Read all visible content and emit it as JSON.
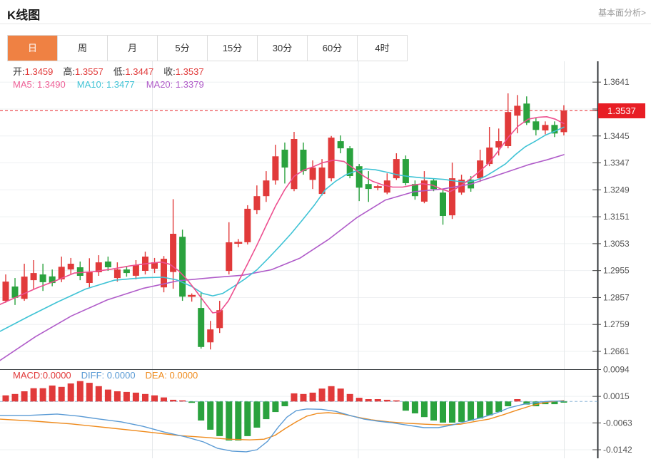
{
  "header": {
    "title": "K线图",
    "link": "基本面分析>"
  },
  "tabs": {
    "items": [
      "日",
      "周",
      "月",
      "5分",
      "15分",
      "30分",
      "60分",
      "4时"
    ],
    "active_index": 0
  },
  "readout": {
    "open_label": "开:",
    "open": "1.3459",
    "high_label": "高:",
    "high": "1.3557",
    "low_label": "低:",
    "low": "1.3447",
    "close_label": "收:",
    "close": "1.3537"
  },
  "ma_readout": {
    "ma5_label": "MA5:",
    "ma5": "1.3490",
    "ma10_label": "MA10:",
    "ma10": "1.3477",
    "ma20_label": "MA20:",
    "ma20": "1.3379"
  },
  "macd_readout": {
    "macd_label": "MACD:",
    "macd": "0.0000",
    "diff_label": "DIFF:",
    "diff": "0.0000",
    "dea_label": "DEA:",
    "dea": "0.0000"
  },
  "price_axis": {
    "ticks": [
      "1.3641",
      "1.3445",
      "1.3347",
      "1.3249",
      "1.3151",
      "1.3053",
      "1.2955",
      "1.2857",
      "1.2759",
      "1.2661"
    ],
    "gridlines": [
      1.3641,
      1.3543,
      1.3445,
      1.3347,
      1.3249,
      1.3151,
      1.3053,
      1.2955,
      1.2857,
      1.2759,
      1.2661
    ],
    "current": "1.3537",
    "current_value": 1.3537
  },
  "macd_axis": {
    "ticks": [
      "0.0094",
      "0.0015",
      "-0.0063",
      "-0.0142"
    ],
    "gridlines": [
      0.0015,
      -0.0063,
      -0.0142
    ]
  },
  "colors": {
    "up": "#e13a3a",
    "down": "#2aa23e",
    "ma5": "#ed4f8f",
    "ma10": "#3fc3d5",
    "ma20": "#b05cc9",
    "diff": "#5b9bd5",
    "dea": "#ef8b1d",
    "badge": "#e81e25",
    "dashed_price": "#e8262a",
    "dashed_zero": "#8fb8da",
    "tab_active": "#ef8143"
  },
  "chart_data": {
    "type": "candlestick",
    "title": "K线图",
    "legend": [
      "MA5",
      "MA10",
      "MA20",
      "MACD",
      "DIFF",
      "DEA"
    ],
    "price_range": [
      1.2661,
      1.3641
    ],
    "macd_range": [
      -0.0142,
      0.0094
    ],
    "grid": true,
    "current_price": 1.3537,
    "candles_ohlc": [
      [
        1.2845,
        1.2941,
        1.2838,
        1.2915
      ],
      [
        1.2897,
        1.2928,
        1.283,
        1.2856
      ],
      [
        1.2852,
        1.298,
        1.2845,
        1.2933
      ],
      [
        1.292,
        1.2993,
        1.2889,
        1.2946
      ],
      [
        1.2941,
        1.298,
        1.2881,
        1.2913
      ],
      [
        1.2934,
        1.2959,
        1.2898,
        1.291
      ],
      [
        1.2923,
        1.3006,
        1.2913,
        1.2969
      ],
      [
        1.2959,
        1.3001,
        1.2941,
        1.298
      ],
      [
        1.2967,
        1.2988,
        1.292,
        1.2936
      ],
      [
        1.291,
        1.3,
        1.2894,
        1.2949
      ],
      [
        1.2949,
        1.3011,
        1.2936,
        1.2985
      ],
      [
        1.2988,
        1.3006,
        1.2954,
        1.2967
      ],
      [
        1.2928,
        1.2985,
        1.2915,
        1.2959
      ],
      [
        1.2959,
        1.2972,
        1.2933,
        1.2946
      ],
      [
        1.2936,
        1.2993,
        1.2923,
        1.2975
      ],
      [
        1.2954,
        1.3024,
        1.2941,
        1.3006
      ],
      [
        1.2962,
        1.3001,
        1.2946,
        1.2985
      ],
      [
        1.2894,
        1.3008,
        1.2876,
        1.2998
      ],
      [
        1.295,
        1.3215,
        1.2889,
        1.3089
      ],
      [
        1.3078,
        1.3104,
        1.2845,
        1.286
      ],
      [
        1.2859,
        1.2872,
        1.2842,
        1.2863
      ],
      [
        1.2819,
        1.2876,
        1.2671,
        1.2677
      ],
      [
        1.2694,
        1.2772,
        1.2668,
        1.2741
      ],
      [
        1.2746,
        1.2845,
        1.2728,
        1.2811
      ],
      [
        1.2954,
        1.3131,
        1.2941,
        1.3058
      ],
      [
        1.3052,
        1.307,
        1.304,
        1.3056
      ],
      [
        1.3058,
        1.3193,
        1.305,
        1.318
      ],
      [
        1.3175,
        1.3265,
        1.3161,
        1.3226
      ],
      [
        1.3226,
        1.3317,
        1.3205,
        1.3283
      ],
      [
        1.3283,
        1.3413,
        1.3268,
        1.3371
      ],
      [
        1.3395,
        1.3421,
        1.3272,
        1.333
      ],
      [
        1.3252,
        1.346,
        1.3244,
        1.3434
      ],
      [
        1.3395,
        1.3421,
        1.3304,
        1.3317
      ],
      [
        1.3285,
        1.3356,
        1.3252,
        1.333
      ],
      [
        1.3234,
        1.3361,
        1.3228,
        1.333
      ],
      [
        1.3291,
        1.3445,
        1.328,
        1.3439
      ],
      [
        1.3426,
        1.3447,
        1.3382,
        1.34
      ],
      [
        1.34,
        1.3408,
        1.3291,
        1.3299
      ],
      [
        1.3335,
        1.3343,
        1.3208,
        1.3257
      ],
      [
        1.327,
        1.3317,
        1.3205,
        1.3252
      ],
      [
        1.3255,
        1.3268,
        1.3247,
        1.3259
      ],
      [
        1.3239,
        1.3309,
        1.3233,
        1.3283
      ],
      [
        1.3291,
        1.3382,
        1.3285,
        1.3361
      ],
      [
        1.3361,
        1.3374,
        1.3265,
        1.3273
      ],
      [
        1.327,
        1.3283,
        1.3213,
        1.3226
      ],
      [
        1.3206,
        1.3317,
        1.32,
        1.3283
      ],
      [
        1.3283,
        1.3291,
        1.3244,
        1.3252
      ],
      [
        1.3239,
        1.325,
        1.3122,
        1.3154
      ],
      [
        1.3156,
        1.3348,
        1.3143,
        1.3291
      ],
      [
        1.3239,
        1.3304,
        1.3231,
        1.3286
      ],
      [
        1.3286,
        1.3299,
        1.3242,
        1.3254
      ],
      [
        1.3291,
        1.3395,
        1.3278,
        1.3356
      ],
      [
        1.3343,
        1.3478,
        1.3335,
        1.3403
      ],
      [
        1.3403,
        1.3472,
        1.3374,
        1.3426
      ],
      [
        1.3408,
        1.36,
        1.34,
        1.3532
      ],
      [
        1.3519,
        1.3594,
        1.3455,
        1.3555
      ],
      [
        1.3563,
        1.3589,
        1.3485,
        1.3493
      ],
      [
        1.3498,
        1.3511,
        1.3447,
        1.3467
      ],
      [
        1.3465,
        1.3498,
        1.3451,
        1.3485
      ],
      [
        1.3485,
        1.3498,
        1.3441,
        1.3454
      ],
      [
        1.3459,
        1.3557,
        1.3447,
        1.3537
      ]
    ],
    "ma5": [
      [
        0,
        1.2832
      ],
      [
        26,
        1.2862
      ],
      [
        52,
        1.2892
      ],
      [
        78,
        1.2918
      ],
      [
        104,
        1.2946
      ],
      [
        130,
        1.2951
      ],
      [
        156,
        1.296
      ],
      [
        182,
        1.2972
      ],
      [
        208,
        1.2981
      ],
      [
        226,
        1.2986
      ],
      [
        238,
        1.2978
      ],
      [
        250,
        1.2955
      ],
      [
        262,
        1.2923
      ],
      [
        274,
        1.2883
      ],
      [
        287,
        1.2838
      ],
      [
        298,
        1.2801
      ],
      [
        308,
        1.2805
      ],
      [
        320,
        1.2845
      ],
      [
        333,
        1.291
      ],
      [
        346,
        1.2975
      ],
      [
        360,
        1.3048
      ],
      [
        373,
        1.312
      ],
      [
        386,
        1.319
      ],
      [
        399,
        1.325
      ],
      [
        412,
        1.3298
      ],
      [
        425,
        1.332
      ],
      [
        438,
        1.3332
      ],
      [
        452,
        1.3348
      ],
      [
        468,
        1.3357
      ],
      [
        482,
        1.3352
      ],
      [
        496,
        1.3326
      ],
      [
        510,
        1.3298
      ],
      [
        522,
        1.328
      ],
      [
        536,
        1.3267
      ],
      [
        550,
        1.3259
      ],
      [
        564,
        1.3259
      ],
      [
        578,
        1.3266
      ],
      [
        592,
        1.3271
      ],
      [
        606,
        1.3266
      ],
      [
        618,
        1.3252
      ],
      [
        630,
        1.3242
      ],
      [
        642,
        1.3258
      ],
      [
        656,
        1.3283
      ],
      [
        670,
        1.3312
      ],
      [
        684,
        1.3344
      ],
      [
        698,
        1.339
      ],
      [
        712,
        1.344
      ],
      [
        726,
        1.3481
      ],
      [
        740,
        1.3506
      ],
      [
        754,
        1.3513
      ],
      [
        766,
        1.3515
      ],
      [
        778,
        1.3506
      ],
      [
        790,
        1.349
      ]
    ],
    "ma10": [
      [
        0,
        1.2734
      ],
      [
        40,
        1.2788
      ],
      [
        80,
        1.284
      ],
      [
        120,
        1.2888
      ],
      [
        160,
        1.292
      ],
      [
        200,
        1.2929
      ],
      [
        228,
        1.2931
      ],
      [
        248,
        1.2921
      ],
      [
        268,
        1.2898
      ],
      [
        284,
        1.2872
      ],
      [
        298,
        1.2863
      ],
      [
        312,
        1.2872
      ],
      [
        328,
        1.2898
      ],
      [
        344,
        1.2926
      ],
      [
        360,
        1.2958
      ],
      [
        376,
        1.3
      ],
      [
        392,
        1.3044
      ],
      [
        408,
        1.309
      ],
      [
        424,
        1.314
      ],
      [
        440,
        1.3192
      ],
      [
        456,
        1.325
      ],
      [
        470,
        1.328
      ],
      [
        484,
        1.3303
      ],
      [
        498,
        1.3317
      ],
      [
        512,
        1.3325
      ],
      [
        526,
        1.3322
      ],
      [
        542,
        1.3313
      ],
      [
        558,
        1.3303
      ],
      [
        574,
        1.3297
      ],
      [
        590,
        1.3293
      ],
      [
        606,
        1.329
      ],
      [
        622,
        1.3287
      ],
      [
        638,
        1.3281
      ],
      [
        652,
        1.3277
      ],
      [
        666,
        1.3283
      ],
      [
        680,
        1.3298
      ],
      [
        694,
        1.332
      ],
      [
        708,
        1.3343
      ],
      [
        722,
        1.3377
      ],
      [
        736,
        1.3406
      ],
      [
        750,
        1.3426
      ],
      [
        764,
        1.3448
      ],
      [
        777,
        1.3462
      ],
      [
        790,
        1.3477
      ]
    ],
    "ma20": [
      [
        0,
        1.2628
      ],
      [
        50,
        1.2715
      ],
      [
        100,
        1.279
      ],
      [
        150,
        1.2848
      ],
      [
        200,
        1.289
      ],
      [
        250,
        1.2918
      ],
      [
        300,
        1.293
      ],
      [
        340,
        1.2938
      ],
      [
        380,
        1.2958
      ],
      [
        420,
        1.3
      ],
      [
        460,
        1.3068
      ],
      [
        500,
        1.3148
      ],
      [
        540,
        1.3212
      ],
      [
        580,
        1.3242
      ],
      [
        620,
        1.3252
      ],
      [
        660,
        1.327
      ],
      [
        700,
        1.3305
      ],
      [
        740,
        1.334
      ],
      [
        766,
        1.3358
      ],
      [
        790,
        1.3377
      ]
    ],
    "macd_hist": [
      0.0018,
      0.0022,
      0.003,
      0.0039,
      0.0039,
      0.0047,
      0.0043,
      0.0053,
      0.006,
      0.0055,
      0.0045,
      0.0035,
      0.003,
      0.0028,
      0.0026,
      0.0022,
      0.0018,
      0.0012,
      0.0005,
      0.0002,
      -0.0004,
      -0.0056,
      -0.0083,
      -0.0102,
      -0.0115,
      -0.0115,
      -0.0102,
      -0.0077,
      -0.0052,
      -0.0031,
      -0.0014,
      0.0024,
      0.0022,
      0.0026,
      0.0038,
      0.0045,
      0.0038,
      0.0022,
      0.0011,
      0.0007,
      0.0007,
      0.0005,
      0.0003,
      -0.0027,
      -0.0035,
      -0.0046,
      -0.0056,
      -0.0062,
      -0.0062,
      -0.006,
      -0.0056,
      -0.005,
      -0.0041,
      -0.0031,
      -0.0014,
      0.0007,
      -0.0009,
      -0.0014,
      -0.0008,
      -0.0008,
      -0.0003
    ],
    "diff": [
      [
        0,
        -0.0041
      ],
      [
        40,
        -0.0041
      ],
      [
        80,
        -0.0037
      ],
      [
        110,
        -0.0043
      ],
      [
        140,
        -0.0052
      ],
      [
        170,
        -0.006
      ],
      [
        200,
        -0.0073
      ],
      [
        230,
        -0.009
      ],
      [
        260,
        -0.0104
      ],
      [
        285,
        -0.0119
      ],
      [
        305,
        -0.0138
      ],
      [
        325,
        -0.0146
      ],
      [
        345,
        -0.0148
      ],
      [
        360,
        -0.0142
      ],
      [
        375,
        -0.0117
      ],
      [
        390,
        -0.0075
      ],
      [
        402,
        -0.0046
      ],
      [
        415,
        -0.0027
      ],
      [
        430,
        -0.0022
      ],
      [
        450,
        -0.0023
      ],
      [
        470,
        -0.0029
      ],
      [
        490,
        -0.0041
      ],
      [
        510,
        -0.0052
      ],
      [
        530,
        -0.0058
      ],
      [
        550,
        -0.0063
      ],
      [
        572,
        -0.007
      ],
      [
        594,
        -0.0077
      ],
      [
        614,
        -0.0077
      ],
      [
        634,
        -0.0069
      ],
      [
        654,
        -0.0058
      ],
      [
        674,
        -0.0048
      ],
      [
        694,
        -0.0035
      ],
      [
        714,
        -0.0018
      ],
      [
        734,
        -0.0008
      ],
      [
        754,
        -0.0002
      ],
      [
        772,
        0.0001
      ],
      [
        790,
        0.0001
      ]
    ],
    "dea": [
      [
        0,
        -0.0052
      ],
      [
        50,
        -0.0058
      ],
      [
        100,
        -0.0066
      ],
      [
        150,
        -0.0077
      ],
      [
        200,
        -0.0088
      ],
      [
        250,
        -0.01
      ],
      [
        290,
        -0.0106
      ],
      [
        320,
        -0.0111
      ],
      [
        350,
        -0.0113
      ],
      [
        370,
        -0.0111
      ],
      [
        385,
        -0.01
      ],
      [
        400,
        -0.0079
      ],
      [
        415,
        -0.006
      ],
      [
        430,
        -0.0043
      ],
      [
        445,
        -0.0035
      ],
      [
        460,
        -0.0033
      ],
      [
        480,
        -0.0037
      ],
      [
        500,
        -0.0046
      ],
      [
        520,
        -0.0054
      ],
      [
        545,
        -0.006
      ],
      [
        570,
        -0.0064
      ],
      [
        595,
        -0.0067
      ],
      [
        620,
        -0.0069
      ],
      [
        645,
        -0.0067
      ],
      [
        665,
        -0.0059
      ],
      [
        685,
        -0.0052
      ],
      [
        705,
        -0.0039
      ],
      [
        725,
        -0.0025
      ],
      [
        745,
        -0.0012
      ],
      [
        765,
        -0.0002
      ],
      [
        790,
        0.0003
      ]
    ],
    "x_gridlines": [
      213.5,
      502,
      790.5
    ]
  }
}
